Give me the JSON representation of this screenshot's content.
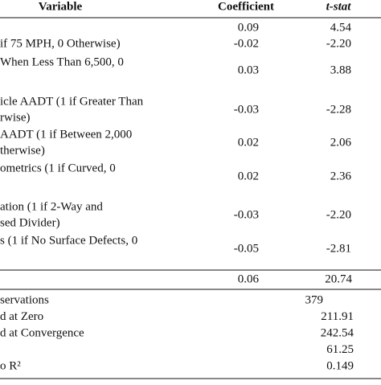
{
  "header": {
    "variable": "Variable",
    "coefficient": "Coefficient",
    "t_stat": "t-stat"
  },
  "rows": [
    {
      "variable": [],
      "coefficient": "0.09",
      "t_stat": "4.54"
    },
    {
      "variable": [
        "if 75 MPH, 0 Otherwise)"
      ],
      "coefficient": "-0.02",
      "t_stat": "-2.20"
    },
    {
      "variable": [
        "When Less Than 6,500, 0",
        ""
      ],
      "coefficient": "0.03",
      "t_stat": "3.88"
    },
    {
      "variable": [
        "icle AADT (1 if Greater Than",
        "rwise)"
      ],
      "coefficient": "-0.03",
      "t_stat": "-2.28"
    },
    {
      "variable": [
        "AADT (1 if Between 2,000",
        "therwise)"
      ],
      "coefficient": "0.02",
      "t_stat": "2.06"
    },
    {
      "variable": [
        "ometrics (1 if Curved, 0",
        ""
      ],
      "coefficient": "0.02",
      "t_stat": "2.36"
    },
    {
      "variable": [
        "ation (1 if 2-Way and",
        "sed Divider)"
      ],
      "coefficient": "-0.03",
      "t_stat": "-2.20"
    },
    {
      "variable": [
        "s (1 if No Surface Defects, 0",
        ""
      ],
      "coefficient": "-0.05",
      "t_stat": "-2.81"
    }
  ],
  "constant": {
    "coefficient": "0.06",
    "t_stat": "20.74"
  },
  "stats": [
    {
      "label": "servations",
      "value": "379"
    },
    {
      "label": "d at Zero",
      "value": "211.91"
    },
    {
      "label": "d at Convergence",
      "value": "242.54"
    },
    {
      "label": "",
      "value": "61.25"
    },
    {
      "label": "o R²",
      "value": "0.149"
    }
  ]
}
